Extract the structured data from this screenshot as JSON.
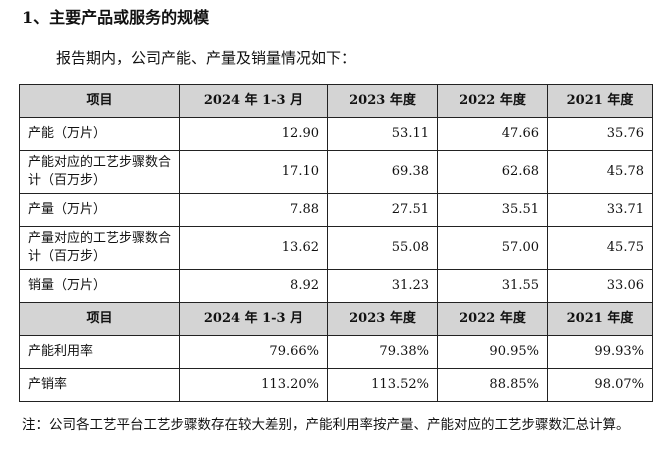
{
  "heading": "1、主要产品或服务的规模",
  "intro": "报告期内，公司产能、产量及销量情况如下：",
  "table1": {
    "headers": [
      "项目",
      "2024 年 1-3 月",
      "2023 年度",
      "2022 年度",
      "2021 年度"
    ],
    "rows": [
      {
        "label": "产能（万片）",
        "values": [
          "12.90",
          "53.11",
          "47.66",
          "35.76"
        ]
      },
      {
        "label": "产能对应的工艺步骤数合计（百万步）",
        "values": [
          "17.10",
          "69.38",
          "62.68",
          "45.78"
        ]
      },
      {
        "label": "产量（万片）",
        "values": [
          "7.88",
          "27.51",
          "35.51",
          "33.71"
        ]
      },
      {
        "label": "产量对应的工艺步骤数合计（百万步）",
        "values": [
          "13.62",
          "55.08",
          "57.00",
          "45.75"
        ]
      },
      {
        "label": "销量（万片）",
        "values": [
          "8.92",
          "31.23",
          "31.55",
          "33.06"
        ]
      }
    ]
  },
  "table2": {
    "headers": [
      "项目",
      "2024 年 1-3 月",
      "2023 年度",
      "2022 年度",
      "2021 年度"
    ],
    "rows": [
      {
        "label": "产能利用率",
        "values": [
          "79.66%",
          "79.38%",
          "90.95%",
          "99.93%"
        ]
      },
      {
        "label": "产销率",
        "values": [
          "113.20%",
          "113.52%",
          "88.85%",
          "98.07%"
        ]
      }
    ]
  },
  "note": "注：公司各工艺平台工艺步骤数存在较大差别，产能利用率按产量、产能对应的工艺步骤数汇总计算。"
}
